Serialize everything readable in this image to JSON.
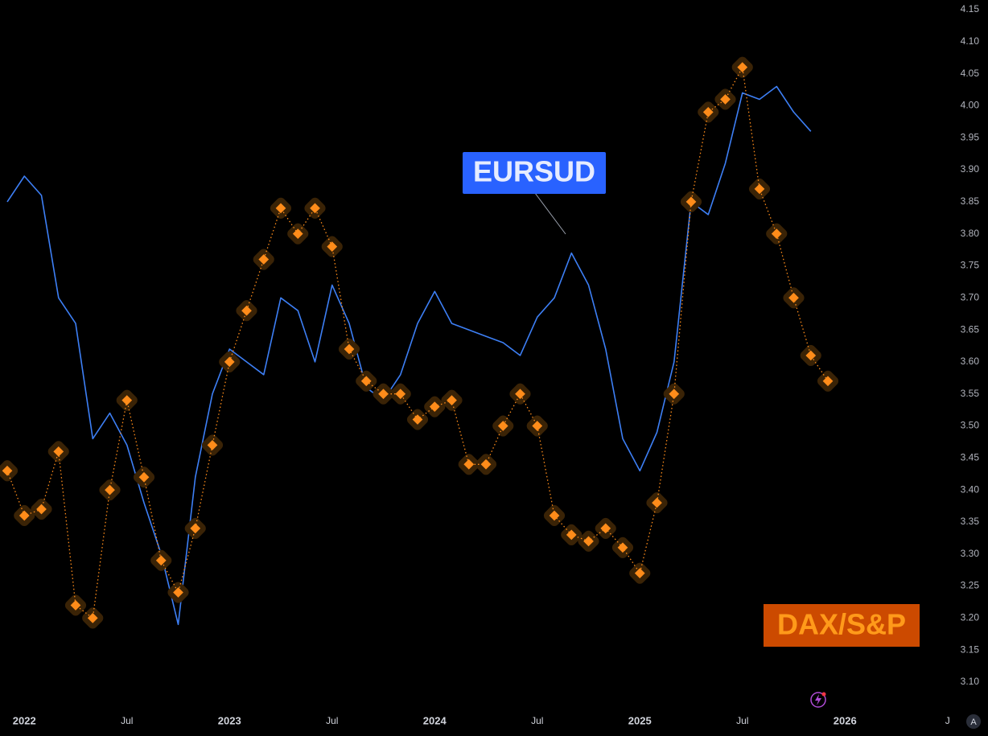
{
  "chart_data": {
    "type": "line",
    "x": [
      "2021-12",
      "2022-01",
      "2022-02",
      "2022-03",
      "2022-04",
      "2022-05",
      "2022-06",
      "2022-07",
      "2022-08",
      "2022-09",
      "2022-10",
      "2022-11",
      "2022-12",
      "2023-01",
      "2023-02",
      "2023-03",
      "2023-04",
      "2023-05",
      "2023-06",
      "2023-07",
      "2023-08",
      "2023-09",
      "2023-10",
      "2023-11",
      "2023-12",
      "2024-01",
      "2024-02",
      "2024-03",
      "2024-04",
      "2024-05",
      "2024-06",
      "2024-07",
      "2024-08",
      "2024-09",
      "2024-10",
      "2024-11",
      "2024-12",
      "2025-01",
      "2025-02",
      "2025-03",
      "2025-04",
      "2025-05",
      "2025-06",
      "2025-07",
      "2025-08",
      "2025-09",
      "2025-10",
      "2025-11",
      "2025-12"
    ],
    "series": [
      {
        "name": "EURSUD",
        "color": "#3d7ff5",
        "values": [
          3.85,
          3.89,
          3.86,
          3.7,
          3.66,
          3.48,
          3.52,
          3.47,
          3.38,
          3.3,
          3.19,
          3.42,
          3.55,
          3.62,
          3.6,
          3.58,
          3.7,
          3.68,
          3.6,
          3.72,
          3.66,
          3.56,
          3.54,
          3.58,
          3.66,
          3.71,
          3.66,
          3.65,
          3.64,
          3.63,
          3.61,
          3.67,
          3.7,
          3.77,
          3.72,
          3.62,
          3.48,
          3.43,
          3.49,
          3.6,
          3.85,
          3.83,
          3.91,
          4.02,
          4.01,
          4.03,
          3.99,
          3.96,
          null
        ]
      },
      {
        "name": "DAX/S&P",
        "color": "#ff8c1a",
        "values": [
          3.43,
          3.36,
          3.37,
          3.46,
          3.22,
          3.2,
          3.4,
          3.54,
          3.42,
          3.29,
          3.24,
          3.34,
          3.47,
          3.6,
          3.68,
          3.76,
          3.84,
          3.8,
          3.84,
          3.78,
          3.62,
          3.57,
          3.55,
          3.55,
          3.51,
          3.53,
          3.54,
          3.44,
          3.44,
          3.5,
          3.55,
          3.5,
          3.36,
          3.33,
          3.32,
          3.34,
          3.31,
          3.27,
          3.38,
          3.55,
          3.85,
          3.99,
          4.01,
          4.06,
          3.87,
          3.8,
          3.7,
          3.61,
          3.57
        ]
      }
    ],
    "xlim": [
      "2021-12",
      "2026-08"
    ],
    "xticks": [
      {
        "value": "2022-01",
        "label": "2022"
      },
      {
        "value": "2022-07",
        "label": "Jul"
      },
      {
        "value": "2023-01",
        "label": "2023"
      },
      {
        "value": "2023-07",
        "label": "Jul"
      },
      {
        "value": "2024-01",
        "label": "2024"
      },
      {
        "value": "2024-07",
        "label": "Jul"
      },
      {
        "value": "2025-01",
        "label": "2025"
      },
      {
        "value": "2025-07",
        "label": "Jul"
      },
      {
        "value": "2026-01",
        "label": "2026"
      },
      {
        "value": "2026-07",
        "label": "J"
      }
    ],
    "ylim": [
      3.1,
      4.15
    ],
    "yticks": [
      {
        "value": 3.1,
        "label": "3.10"
      },
      3.15,
      {
        "value": 3.2,
        "label": "3.20"
      },
      3.25,
      {
        "value": 3.3,
        "label": "3.30"
      },
      3.35,
      {
        "value": 3.4,
        "label": "3.40"
      },
      3.45,
      {
        "value": 3.5,
        "label": "3.50"
      },
      3.55,
      {
        "value": 3.6,
        "label": "3.60"
      },
      3.65,
      {
        "value": 3.7,
        "label": "3.70"
      },
      3.75,
      {
        "value": 3.8,
        "label": "3.80"
      },
      3.85,
      {
        "value": 3.9,
        "label": "3.90"
      },
      3.95,
      {
        "value": 4.0,
        "label": "4.00"
      },
      4.05,
      {
        "value": 4.1,
        "label": "4.10"
      },
      4.15
    ],
    "grid": false
  },
  "ui": {
    "auto_button": "A"
  }
}
